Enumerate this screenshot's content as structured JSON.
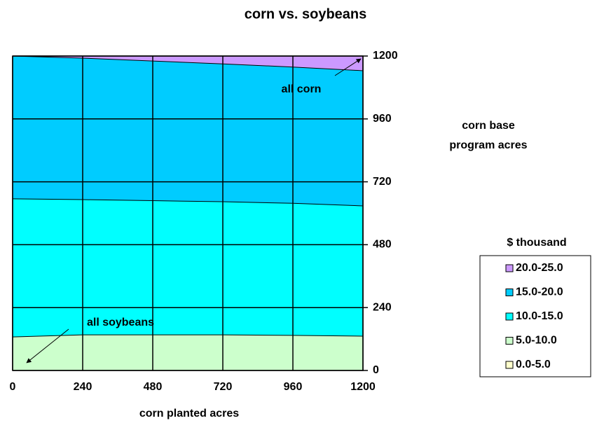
{
  "chart_data": {
    "type": "stacked_area",
    "title": "corn vs. soybeans",
    "x_label": "corn planted acres",
    "y_label": [
      "corn base",
      "program acres"
    ],
    "legend_title": "$ thousand",
    "annotations": [
      "all corn",
      "all soybeans"
    ],
    "x": [
      0,
      240,
      480,
      720,
      960,
      1200
    ],
    "xlim": [
      0,
      1200
    ],
    "xticks": [
      0,
      240,
      480,
      720,
      960,
      1200
    ],
    "ylim": [
      0,
      1200
    ],
    "yticks": [
      0,
      240,
      480,
      720,
      960,
      1200
    ],
    "grid": true,
    "series": [
      {
        "name": "0.0-5.0",
        "color": "#ffffcc",
        "values": [
          0,
          0,
          0,
          0,
          0,
          0
        ]
      },
      {
        "name": "5.0-10.0",
        "color": "#ccffcc",
        "values": [
          128,
          136,
          136,
          136,
          134,
          131
        ]
      },
      {
        "name": "10.0-15.0",
        "color": "#00ffff",
        "values": [
          527,
          516,
          512,
          508,
          504,
          497
        ]
      },
      {
        "name": "15.0-20.0",
        "color": "#00ccff",
        "values": [
          545,
          540,
          533,
          526,
          520,
          516
        ]
      },
      {
        "name": "20.0-25.0",
        "color": "#cc99ff",
        "values": [
          0,
          8,
          19,
          30,
          42,
          56
        ]
      }
    ]
  }
}
